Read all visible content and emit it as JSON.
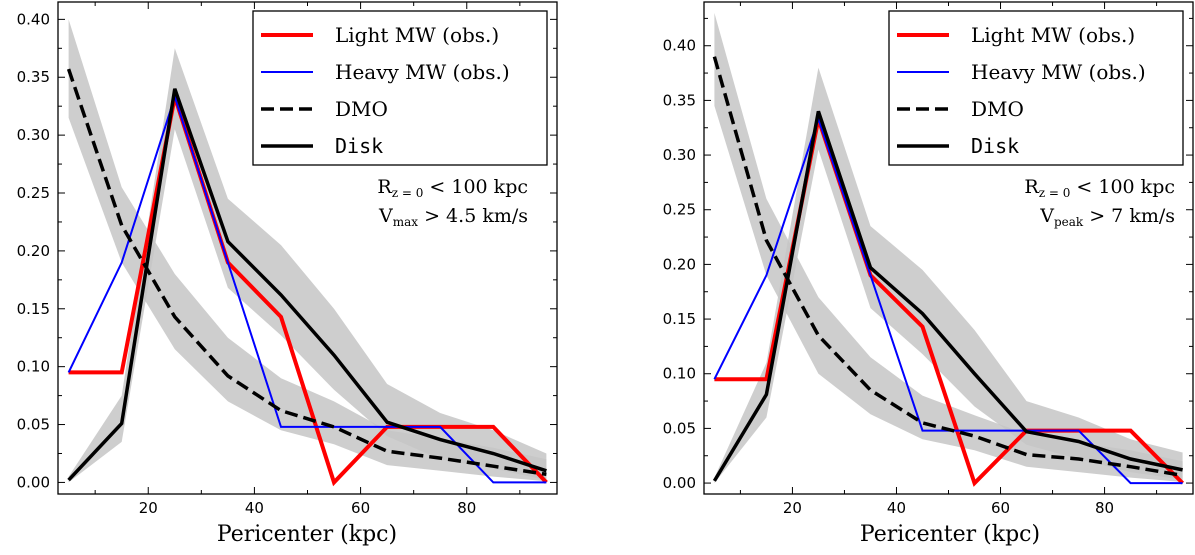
{
  "chart_data": [
    {
      "type": "line",
      "xlabel": "Pericenter (kpc)",
      "ylabel": "",
      "xlim": [
        3,
        97
      ],
      "ylim": [
        -0.01,
        0.415
      ],
      "xticks": [
        20,
        40,
        60,
        80
      ],
      "yticks": [
        0.0,
        0.05,
        0.1,
        0.15,
        0.2,
        0.25,
        0.3,
        0.35,
        0.4
      ],
      "x": [
        5,
        15,
        25,
        35,
        45,
        55,
        65,
        75,
        85,
        95
      ],
      "series": [
        {
          "name": "Light MW (obs.)",
          "color": "#ff0000",
          "style": "solid",
          "width": 4,
          "values": [
            0.095,
            0.095,
            0.333,
            0.19,
            0.143,
            0.0,
            0.048,
            0.048,
            0.048,
            0.0
          ]
        },
        {
          "name": "Heavy MW (obs.)",
          "color": "#0000ff",
          "style": "solid",
          "width": 2,
          "values": [
            0.095,
            0.19,
            0.333,
            0.19,
            0.048,
            0.048,
            0.048,
            0.048,
            0.0,
            0.0
          ]
        },
        {
          "name": "DMO",
          "color": "#000000",
          "style": "dashed",
          "width": 3.5,
          "values": [
            0.357,
            0.222,
            0.143,
            0.092,
            0.062,
            0.048,
            0.027,
            0.021,
            0.014,
            0.007
          ],
          "band_low": [
            0.315,
            0.19,
            0.115,
            0.07,
            0.045,
            0.033,
            0.015,
            0.01,
            0.005,
            0.001
          ],
          "band_high": [
            0.4,
            0.255,
            0.18,
            0.125,
            0.09,
            0.07,
            0.045,
            0.038,
            0.03,
            0.02
          ]
        },
        {
          "name": "Disk",
          "color": "#000000",
          "style": "solid",
          "width": 3.5,
          "values": [
            0.002,
            0.051,
            0.34,
            0.208,
            0.162,
            0.11,
            0.052,
            0.037,
            0.025,
            0.01
          ],
          "band_low": [
            0.0,
            0.035,
            0.305,
            0.168,
            0.127,
            0.08,
            0.04,
            0.02,
            0.012,
            0.002
          ],
          "band_high": [
            0.005,
            0.075,
            0.375,
            0.245,
            0.205,
            0.15,
            0.085,
            0.06,
            0.045,
            0.025
          ]
        }
      ],
      "legend": {
        "position": "upper-right",
        "entries": [
          "Light MW (obs.)",
          "Heavy MW (obs.)",
          "DMO",
          "Disk"
        ]
      },
      "annotation": {
        "line1_main": "R",
        "line1_sub": "z = 0",
        "line1_rest": " < 100 kpc",
        "line2_main": "V",
        "line2_sub": "max",
        "line2_rest": " > 4.5 km/s"
      }
    },
    {
      "type": "line",
      "xlabel": "Pericenter (kpc)",
      "ylabel": "",
      "xlim": [
        3,
        97
      ],
      "ylim": [
        -0.01,
        0.44
      ],
      "xticks": [
        20,
        40,
        60,
        80
      ],
      "yticks": [
        0.0,
        0.05,
        0.1,
        0.15,
        0.2,
        0.25,
        0.3,
        0.35,
        0.4
      ],
      "x": [
        5,
        15,
        25,
        35,
        45,
        55,
        65,
        75,
        85,
        95
      ],
      "series": [
        {
          "name": "Light MW (obs.)",
          "color": "#ff0000",
          "style": "solid",
          "width": 4,
          "values": [
            0.095,
            0.095,
            0.333,
            0.19,
            0.143,
            0.0,
            0.048,
            0.048,
            0.048,
            0.0
          ]
        },
        {
          "name": "Heavy MW (obs.)",
          "color": "#0000ff",
          "style": "solid",
          "width": 2,
          "values": [
            0.095,
            0.19,
            0.333,
            0.19,
            0.048,
            0.048,
            0.048,
            0.048,
            0.0,
            0.0
          ]
        },
        {
          "name": "DMO",
          "color": "#000000",
          "style": "dashed",
          "width": 3.5,
          "values": [
            0.39,
            0.222,
            0.135,
            0.085,
            0.055,
            0.043,
            0.026,
            0.022,
            0.015,
            0.007
          ],
          "band_low": [
            0.345,
            0.19,
            0.1,
            0.063,
            0.04,
            0.03,
            0.015,
            0.01,
            0.005,
            0.001
          ],
          "band_high": [
            0.43,
            0.26,
            0.17,
            0.115,
            0.08,
            0.062,
            0.045,
            0.037,
            0.03,
            0.02
          ]
        },
        {
          "name": "Disk",
          "color": "#000000",
          "style": "solid",
          "width": 3.5,
          "values": [
            0.002,
            0.081,
            0.34,
            0.197,
            0.155,
            0.1,
            0.047,
            0.038,
            0.022,
            0.012
          ],
          "band_low": [
            0.0,
            0.06,
            0.305,
            0.16,
            0.118,
            0.07,
            0.035,
            0.022,
            0.01,
            0.003
          ],
          "band_high": [
            0.005,
            0.11,
            0.38,
            0.235,
            0.195,
            0.14,
            0.075,
            0.06,
            0.04,
            0.028
          ]
        }
      ],
      "legend": {
        "position": "upper-right",
        "entries": [
          "Light MW (obs.)",
          "Heavy MW (obs.)",
          "DMO",
          "Disk"
        ]
      },
      "annotation": {
        "line1_main": "R",
        "line1_sub": "z = 0",
        "line1_rest": " < 100 kpc",
        "line2_main": "V",
        "line2_sub": "peak",
        "line2_rest": " > 7 km/s"
      }
    }
  ]
}
